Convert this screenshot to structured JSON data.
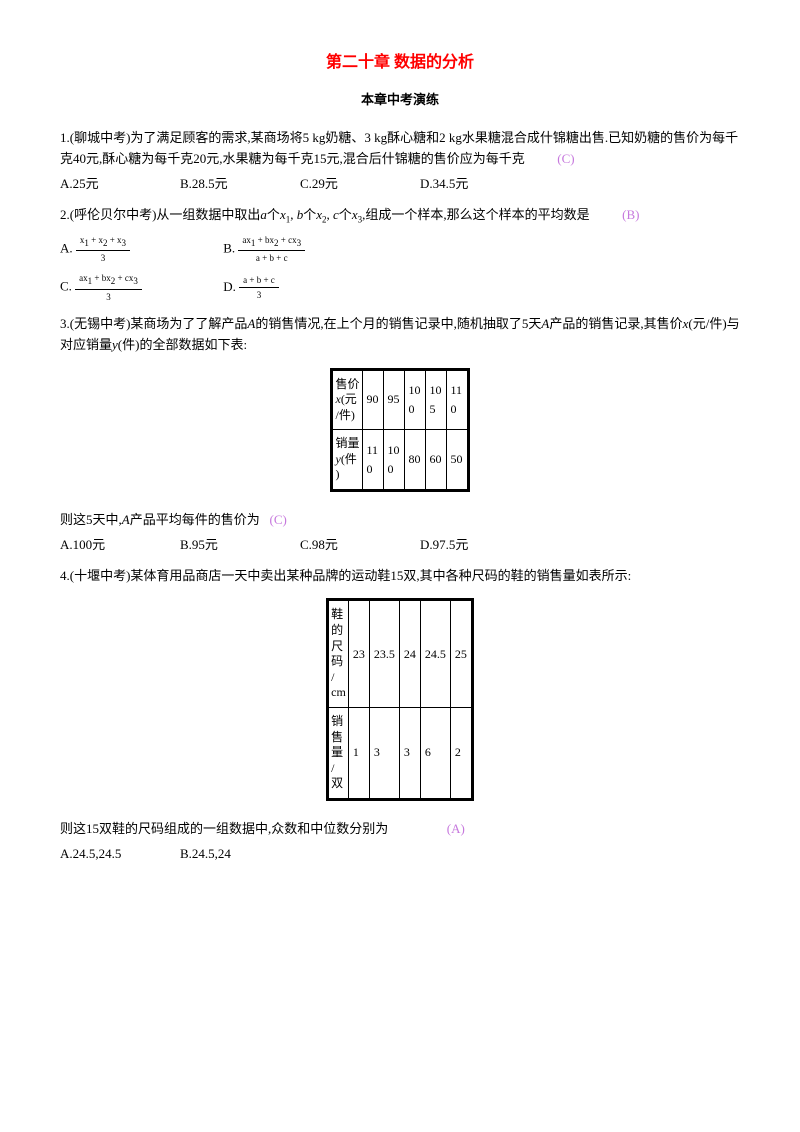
{
  "title": "第二十章 数据的分析",
  "subtitle": "本章中考演练",
  "q1": {
    "text": "1.(聊城中考)为了满足顾客的需求,某商场将5 kg奶糖、3 kg酥心糖和2 kg水果糖混合成什锦糖出售.已知奶糖的售价为每千克40元,酥心糖为每千克20元,水果糖为每千克15元,混合后什锦糖的售价应为每千克",
    "ans": "(C)",
    "A": "A.25元",
    "B": "B.28.5元",
    "C": "C.29元",
    "D": "D.34.5元"
  },
  "q2": {
    "text_a": "2.(呼伦贝尔中考)从一组数据中取出",
    "text_b": "个",
    "text_c": ",组成一个样本,那么这个样本的平均数是",
    "ans": "(B)"
  },
  "q3": {
    "text_a": "3.(无锡中考)某商场为了了解产品",
    "text_b": "的销售情况,在上个月的销售记录中,随机抽取了5天",
    "text_c": "产品的销售记录,其售价",
    "text_d": "(元/件)与对应销量",
    "text_e": "(件)的全部数据如下表:",
    "table_row1_label": "售价\nx(元/件)",
    "table_row1": [
      "90",
      "95",
      "100",
      "105",
      "110"
    ],
    "table_row2_label": "销量\ny(件)",
    "table_row2": [
      "110",
      "100",
      "80",
      "60",
      "50"
    ],
    "after": "则这5天中,A产品平均每件的售价为",
    "ans": "(C)",
    "A": "A.100元",
    "B": "B.95元",
    "C": "C.98元",
    "D": "D.97.5元"
  },
  "q4": {
    "text": "4.(十堰中考)某体育用品商店一天中卖出某种品牌的运动鞋15双,其中各种尺码的鞋的销售量如表所示:",
    "table_row1_label": "鞋的尺码/cm",
    "table_row1": [
      "23",
      "23.5",
      "24",
      "24.5",
      "25"
    ],
    "table_row2_label": "销售量/双",
    "table_row2": [
      "1",
      "3",
      "3",
      "6",
      "2"
    ],
    "after": "则这15双鞋的尺码组成的一组数据中,众数和中位数分别为",
    "ans": "(A)",
    "A": "A.24.5,24.5",
    "B": "B.24.5,24"
  }
}
